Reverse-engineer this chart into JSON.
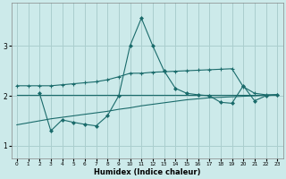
{
  "xlabel": "Humidex (Indice chaleur)",
  "bg_color": "#cceaea",
  "grid_color": "#aacece",
  "line_color": "#1a6b6b",
  "xlim": [
    -0.5,
    23.5
  ],
  "ylim": [
    0.75,
    3.85
  ],
  "yticks": [
    1,
    2,
    3
  ],
  "xticks": [
    0,
    1,
    2,
    3,
    4,
    5,
    6,
    7,
    8,
    9,
    10,
    11,
    12,
    13,
    14,
    15,
    16,
    17,
    18,
    19,
    20,
    21,
    22,
    23
  ],
  "series": [
    {
      "x": [
        0,
        1,
        2,
        3,
        4,
        5,
        6,
        7,
        8,
        9,
        10,
        11,
        12,
        13,
        14,
        15,
        16,
        17,
        18,
        19,
        20,
        21,
        22,
        23
      ],
      "y": [
        2.2,
        2.2,
        2.2,
        2.2,
        2.22,
        2.24,
        2.26,
        2.28,
        2.32,
        2.38,
        2.45,
        2.45,
        2.47,
        2.48,
        2.49,
        2.5,
        2.51,
        2.52,
        2.53,
        2.54,
        2.18,
        2.05,
        2.02,
        2.02
      ],
      "marker": "+"
    },
    {
      "x": [
        2,
        3,
        4,
        5,
        6,
        7,
        8,
        9,
        10,
        11,
        12,
        13,
        14,
        15,
        16,
        17,
        18,
        19,
        20,
        21,
        22,
        23
      ],
      "y": [
        2.05,
        1.3,
        1.52,
        1.47,
        1.43,
        1.4,
        1.6,
        2.0,
        3.0,
        3.55,
        3.0,
        2.5,
        2.15,
        2.05,
        2.02,
        2.0,
        1.87,
        1.85,
        2.2,
        1.9,
        2.0,
        2.02
      ],
      "marker": "D"
    },
    {
      "x": [
        0,
        1,
        2,
        3,
        4,
        5,
        6,
        7,
        8,
        9,
        10,
        11,
        12,
        13,
        14,
        15,
        16,
        17,
        18,
        19,
        20,
        21,
        22,
        23
      ],
      "y": [
        2.02,
        2.02,
        2.02,
        2.02,
        2.02,
        2.02,
        2.02,
        2.02,
        2.02,
        2.02,
        2.02,
        2.02,
        2.02,
        2.02,
        2.02,
        2.02,
        2.02,
        2.02,
        2.02,
        2.02,
        2.02,
        2.02,
        2.02,
        2.02
      ],
      "marker": ""
    },
    {
      "x": [
        0,
        1,
        2,
        3,
        4,
        5,
        6,
        7,
        8,
        9,
        10,
        11,
        12,
        13,
        14,
        15,
        16,
        17,
        18,
        19,
        20,
        21,
        22,
        23
      ],
      "y": [
        1.42,
        1.46,
        1.5,
        1.54,
        1.57,
        1.6,
        1.63,
        1.66,
        1.69,
        1.73,
        1.76,
        1.8,
        1.83,
        1.86,
        1.89,
        1.92,
        1.94,
        1.96,
        1.97,
        1.98,
        1.99,
        2.0,
        2.01,
        2.02
      ],
      "marker": ""
    }
  ]
}
